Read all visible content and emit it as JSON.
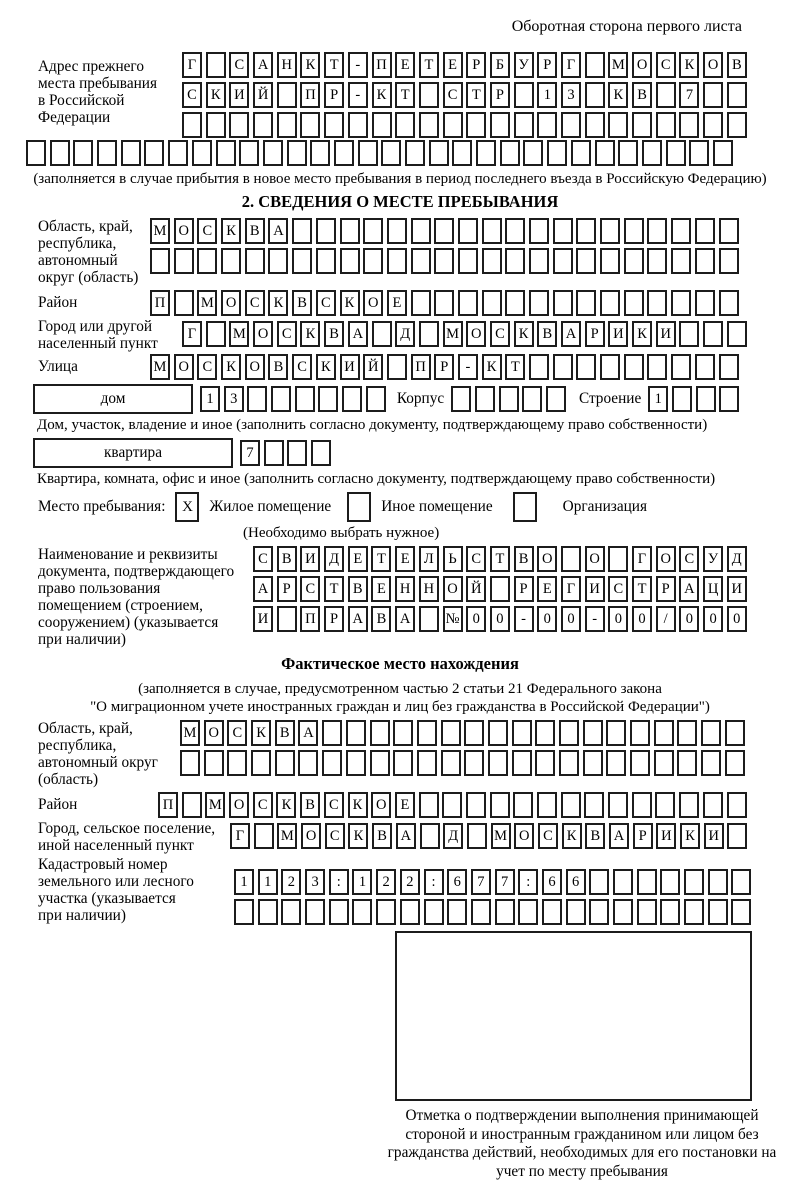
{
  "page_note": "Оборотная сторона первого листа",
  "prev_address": {
    "label": "Адрес прежнего\nместа пребывания\nв Российской\nФедерации",
    "row1": {
      "t": "Г САНКТ-ПЕТЕРБУРГ МОСКОВ",
      "n": 24
    },
    "row2": {
      "t": "СКИЙ ПР-КТ СТР 13 КВ 7",
      "n": 24
    },
    "row3": {
      "t": "",
      "n": 24
    },
    "row4": {
      "t": "",
      "n": 30
    },
    "note": "(заполняется в случае прибытия в новое место пребывания в период последнего въезда в Российскую Федерацию)"
  },
  "section2": {
    "title": "2. СВЕДЕНИЯ О МЕСТЕ ПРЕБЫВАНИЯ",
    "region_label": "Область, край,\nреспублика,\nавтономный\nокруг (область)",
    "region_row1": {
      "t": "МОСКВА",
      "n": 25
    },
    "region_row2": {
      "t": "",
      "n": 25
    },
    "district_label": "Район",
    "district_row": {
      "t": "П МОСКВСКОЕ",
      "n": 25
    },
    "city_label": "Город или другой\nнаселенный пункт",
    "city_row": {
      "t": "Г МОСКВА Д МОСКВАРИКИ",
      "n": 24
    },
    "street_label": "Улица",
    "street_row": {
      "t": "МОСКОВСКИЙ ПР-КТ",
      "n": 25
    },
    "house_box_label": "дом",
    "house_cells": {
      "t": "13",
      "n": 8
    },
    "korpus_label": "Корпус",
    "korpus_cells": {
      "t": "",
      "n": 5
    },
    "stroenie_label": "Строение",
    "stroenie_cells": {
      "t": "1",
      "n": 4
    },
    "house_note": "Дом, участок, владение и иное (заполнить согласно документу, подтверждающему право собственности)",
    "apartment_box_label": "квартира",
    "apartment_cells": {
      "t": "7",
      "n": 4
    },
    "apartment_note": "Квартира, комната, офис и иное (заполнить согласно документу, подтверждающему право собственности)",
    "stay_label": "Место пребывания:",
    "stay_opt1_mark": "X",
    "stay_opt1": "Жилое помещение",
    "stay_opt2_mark": "",
    "stay_opt2": "Иное помещение",
    "stay_opt3_mark": "",
    "stay_opt3": "Организация",
    "stay_note": "(Необходимо выбрать нужное)",
    "doc_label": "Наименование и реквизиты\nдокумента, подтверждающего\nправо пользования\nпомещением (строением,\nсооружением) (указывается\nпри наличии)",
    "doc_row1": {
      "t": "СВИДЕТЕЛЬСТВО О ГОСУД",
      "n": 21
    },
    "doc_row2": {
      "t": "АРСТВЕННОЙ РЕГИСТРАЦИ",
      "n": 21
    },
    "doc_row3": {
      "t": "И ПРАВА №00-00-00/000",
      "n": 21
    }
  },
  "actual": {
    "title": "Фактическое место нахождения",
    "note_line1": "(заполняется в случае, предусмотренном частью 2 статьи 21 Федерального закона",
    "note_line2": "\"О миграционном учете иностранных граждан и лиц без гражданства в Российской Федерации\")",
    "region_label": "Область, край,\nреспублика,\nавтономный округ\n(область)",
    "region_row1": {
      "t": "МОСКВА",
      "n": 24
    },
    "region_row2": {
      "t": "",
      "n": 24
    },
    "district_label": "Район",
    "district_row": {
      "t": "П МОСКВСКОЕ",
      "n": 25
    },
    "city_label": "Город, сельское поселение,\nиной населенный пункт",
    "city_row": {
      "t": "Г МОСКВА Д МОСКВАРИКИ",
      "n": 22
    },
    "cadastral_label": "Кадастровый номер\nземельного или лесного\nучастка (указывается\nпри наличии)",
    "cadastral_row1": {
      "t": "1123:122:677:66",
      "n": 22
    },
    "cadastral_row2": {
      "t": "",
      "n": 22
    },
    "stamp_note": "Отметка о подтверждении выполнения принимающей стороной и иностранным гражданином или лицом без гражданства действий, необходимых для его постановки на учет по месту пребывания"
  }
}
